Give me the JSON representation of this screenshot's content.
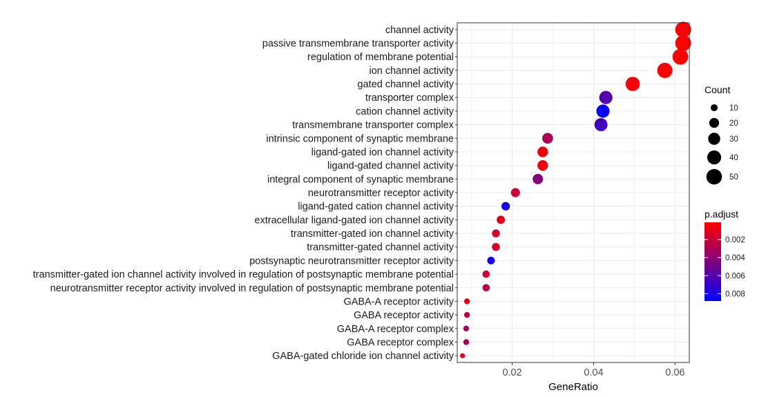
{
  "chart_data": {
    "type": "scatter",
    "xlabel": "GeneRatio",
    "ylabel": "",
    "xlim": [
      0.0065,
      0.0635
    ],
    "xticks": [
      0.02,
      0.04,
      0.06
    ],
    "xtick_labels": [
      "0.02",
      "0.04",
      "0.06"
    ],
    "grid": true,
    "categories": [
      "channel activity",
      "passive transmembrane transporter activity",
      "regulation of membrane potential",
      "ion channel activity",
      "gated channel activity",
      "transporter complex",
      "cation channel activity",
      "transmembrane transporter complex",
      "intrinsic component of synaptic membrane",
      "ligand-gated ion channel activity",
      "ligand-gated channel activity",
      "integral component of synaptic membrane",
      "neurotransmitter receptor activity",
      "ligand-gated cation channel activity",
      "extracellular ligand-gated ion channel activity",
      "transmitter-gated ion channel activity",
      "transmitter-gated channel activity",
      "postsynaptic neurotransmitter receptor activity",
      "transmitter-gated ion channel activity involved in regulation of postsynaptic membrane potential",
      "neurotransmitter receptor activity involved in regulation of postsynaptic membrane potential",
      "GABA-A receptor activity",
      "GABA receptor activity",
      "GABA-A receptor complex",
      "GABA receptor complex",
      "GABA-gated chloride ion channel activity"
    ],
    "points": [
      {
        "x": 0.062,
        "count": 52,
        "p_adjust": 0.0001
      },
      {
        "x": 0.062,
        "count": 52,
        "p_adjust": 0.0001
      },
      {
        "x": 0.0613,
        "count": 51,
        "p_adjust": 0.0002
      },
      {
        "x": 0.0575,
        "count": 48,
        "p_adjust": 0.0002
      },
      {
        "x": 0.0496,
        "count": 42,
        "p_adjust": 0.0004
      },
      {
        "x": 0.043,
        "count": 36,
        "p_adjust": 0.006
      },
      {
        "x": 0.0423,
        "count": 36,
        "p_adjust": 0.0085
      },
      {
        "x": 0.0418,
        "count": 35,
        "p_adjust": 0.0065
      },
      {
        "x": 0.0287,
        "count": 24,
        "p_adjust": 0.003
      },
      {
        "x": 0.0275,
        "count": 23,
        "p_adjust": 0.0006
      },
      {
        "x": 0.0275,
        "count": 23,
        "p_adjust": 0.0006
      },
      {
        "x": 0.0263,
        "count": 22,
        "p_adjust": 0.0043
      },
      {
        "x": 0.0208,
        "count": 17,
        "p_adjust": 0.002
      },
      {
        "x": 0.0184,
        "count": 15,
        "p_adjust": 0.008
      },
      {
        "x": 0.0172,
        "count": 14,
        "p_adjust": 0.0012
      },
      {
        "x": 0.016,
        "count": 13,
        "p_adjust": 0.0016
      },
      {
        "x": 0.016,
        "count": 13,
        "p_adjust": 0.0016
      },
      {
        "x": 0.0148,
        "count": 12,
        "p_adjust": 0.0082
      },
      {
        "x": 0.0136,
        "count": 11,
        "p_adjust": 0.0018
      },
      {
        "x": 0.0136,
        "count": 11,
        "p_adjust": 0.0028
      },
      {
        "x": 0.0089,
        "count": 7,
        "p_adjust": 0.001
      },
      {
        "x": 0.0089,
        "count": 7,
        "p_adjust": 0.0025
      },
      {
        "x": 0.0087,
        "count": 7,
        "p_adjust": 0.0033
      },
      {
        "x": 0.0087,
        "count": 7,
        "p_adjust": 0.0033
      },
      {
        "x": 0.0078,
        "count": 5,
        "p_adjust": 0.0008
      }
    ],
    "size_legend": {
      "title": "Count",
      "values": [
        10,
        20,
        30,
        40,
        50
      ],
      "labels": [
        "10",
        "20",
        "30",
        "40",
        "50"
      ]
    },
    "color_legend": {
      "title": "p.adjust",
      "range": [
        0.0001,
        0.0088
      ],
      "low_color": "#ff0000",
      "high_color": "#0000ff",
      "ticks": [
        0.002,
        0.004,
        0.006,
        0.008
      ],
      "tick_labels": [
        "0.002",
        "0.004",
        "0.006",
        "0.008"
      ]
    }
  }
}
